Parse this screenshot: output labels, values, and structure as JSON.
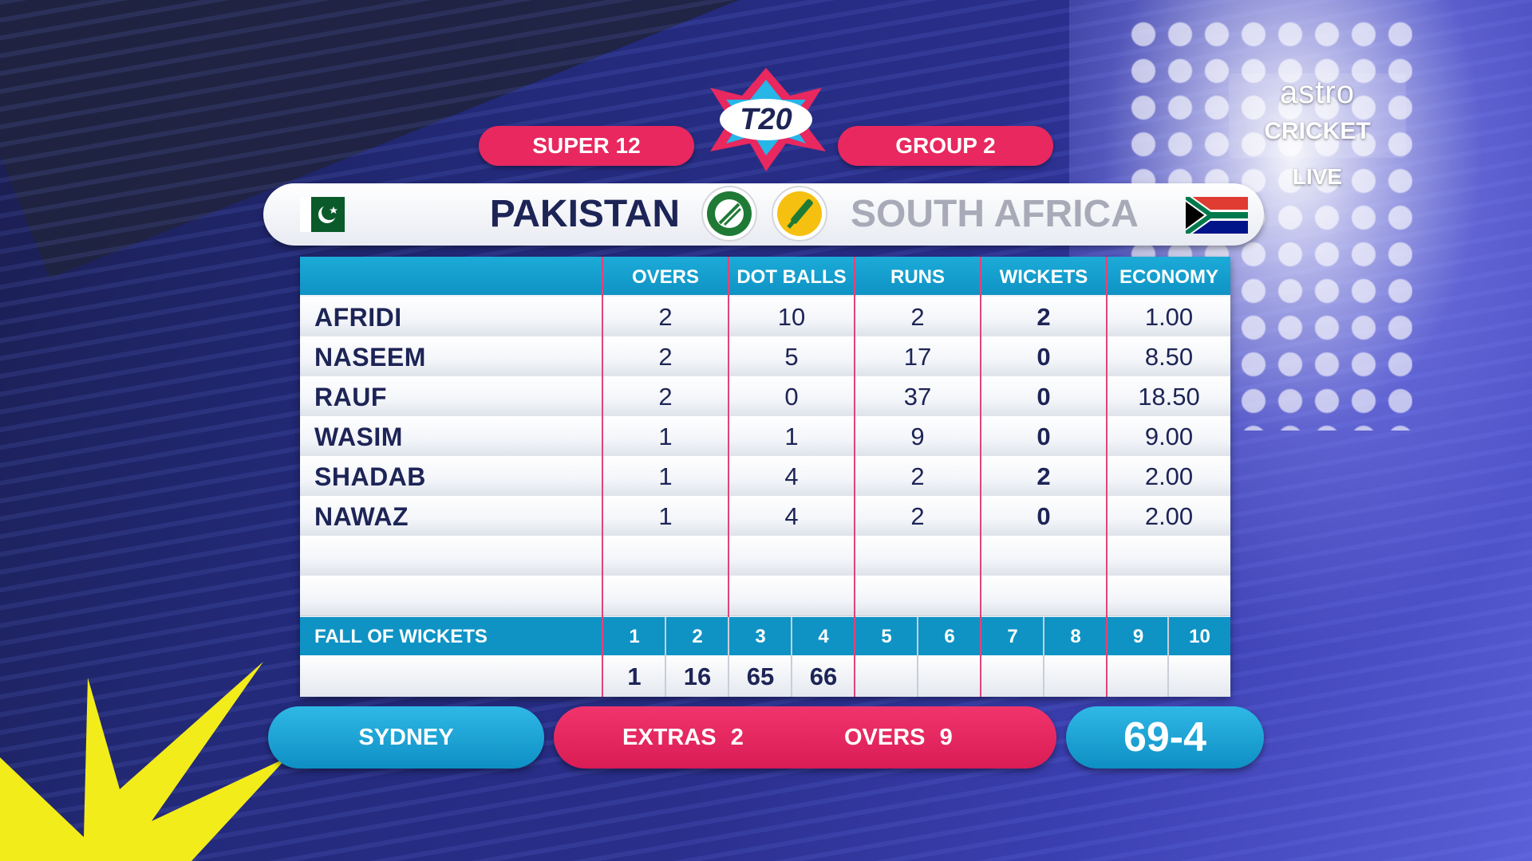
{
  "stage": {
    "round": "SUPER 12",
    "group": "GROUP 2"
  },
  "teams": {
    "home": {
      "name": "PAKISTAN",
      "color": "#1d2456"
    },
    "away": {
      "name": "SOUTH AFRICA",
      "color": "#a8aab8"
    }
  },
  "table": {
    "headers": [
      "OVERS",
      "DOT BALLS",
      "RUNS",
      "WICKETS",
      "ECONOMY"
    ],
    "rows": [
      {
        "name": "AFRIDI",
        "overs": "2",
        "dots": "10",
        "runs": "2",
        "wickets": "2",
        "economy": "1.00"
      },
      {
        "name": "NASEEM",
        "overs": "2",
        "dots": "5",
        "runs": "17",
        "wickets": "0",
        "economy": "8.50"
      },
      {
        "name": "RAUF",
        "overs": "2",
        "dots": "0",
        "runs": "37",
        "wickets": "0",
        "economy": "18.50"
      },
      {
        "name": "WASIM",
        "overs": "1",
        "dots": "1",
        "runs": "9",
        "wickets": "0",
        "economy": "9.00"
      },
      {
        "name": "SHADAB",
        "overs": "1",
        "dots": "4",
        "runs": "2",
        "wickets": "2",
        "economy": "2.00"
      },
      {
        "name": "NAWAZ",
        "overs": "1",
        "dots": "4",
        "runs": "2",
        "wickets": "0",
        "economy": "2.00"
      },
      {
        "name": "",
        "overs": "",
        "dots": "",
        "runs": "",
        "wickets": "",
        "economy": ""
      },
      {
        "name": "",
        "overs": "",
        "dots": "",
        "runs": "",
        "wickets": "",
        "economy": ""
      }
    ]
  },
  "fall_of_wickets": {
    "label": "FALL OF WICKETS",
    "numbers": [
      "1",
      "2",
      "3",
      "4",
      "5",
      "6",
      "7",
      "8",
      "9",
      "10"
    ],
    "values": [
      "1",
      "16",
      "65",
      "66",
      "",
      "",
      "",
      "",
      "",
      ""
    ]
  },
  "footer": {
    "venue": "SYDNEY",
    "extras_label": "EXTRAS",
    "extras_value": "2",
    "overs_label": "OVERS",
    "overs_value": "9",
    "score": "69-4"
  },
  "broadcaster": {
    "brand": "astro",
    "channel": "CRICKET",
    "status": "LIVE"
  },
  "colors": {
    "accent_pink": "#e8285f",
    "accent_blue": "#0f93c4",
    "navy": "#1d2456"
  }
}
